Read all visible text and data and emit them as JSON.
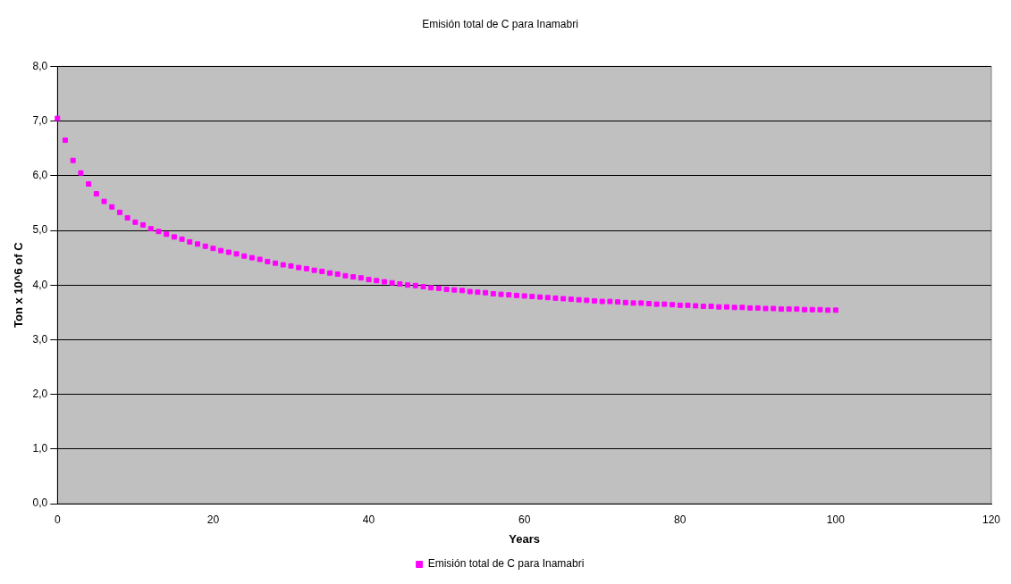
{
  "chart_data": {
    "type": "scatter",
    "title": "Emisión total de C para Inamabri",
    "xlabel": "Years",
    "ylabel": "Ton x 10^6 of C",
    "x": [
      0,
      1,
      2,
      3,
      4,
      5,
      6,
      7,
      8,
      9,
      10,
      11,
      12,
      13,
      14,
      15,
      16,
      17,
      18,
      19,
      20,
      21,
      22,
      23,
      24,
      25,
      26,
      27,
      28,
      29,
      30,
      31,
      32,
      33,
      34,
      35,
      36,
      37,
      38,
      39,
      40,
      41,
      42,
      43,
      44,
      45,
      46,
      47,
      48,
      49,
      50,
      51,
      52,
      53,
      54,
      55,
      56,
      57,
      58,
      59,
      60,
      61,
      62,
      63,
      64,
      65,
      66,
      67,
      68,
      69,
      70,
      71,
      72,
      73,
      74,
      75,
      76,
      77,
      78,
      79,
      80,
      81,
      82,
      83,
      84,
      85,
      86,
      87,
      88,
      89,
      90,
      91,
      92,
      93,
      94,
      95,
      96,
      97,
      98,
      99,
      100
    ],
    "series": [
      {
        "name": "Emisión total de C para Inamabri",
        "color": "#ff00ff",
        "values": [
          7.05,
          6.65,
          6.28,
          6.05,
          5.85,
          5.67,
          5.53,
          5.43,
          5.33,
          5.23,
          5.15,
          5.1,
          5.03,
          4.98,
          4.93,
          4.88,
          4.84,
          4.79,
          4.75,
          4.71,
          4.67,
          4.63,
          4.6,
          4.57,
          4.53,
          4.5,
          4.47,
          4.43,
          4.4,
          4.37,
          4.35,
          4.32,
          4.3,
          4.27,
          4.25,
          4.22,
          4.2,
          4.17,
          4.15,
          4.13,
          4.1,
          4.08,
          4.06,
          4.04,
          4.02,
          4.0,
          3.99,
          3.97,
          3.95,
          3.94,
          3.92,
          3.91,
          3.9,
          3.88,
          3.87,
          3.86,
          3.84,
          3.83,
          3.82,
          3.81,
          3.8,
          3.79,
          3.78,
          3.77,
          3.76,
          3.75,
          3.74,
          3.73,
          3.72,
          3.71,
          3.7,
          3.7,
          3.69,
          3.68,
          3.67,
          3.67,
          3.66,
          3.65,
          3.65,
          3.64,
          3.63,
          3.63,
          3.62,
          3.61,
          3.61,
          3.6,
          3.6,
          3.59,
          3.59,
          3.58,
          3.58,
          3.57,
          3.57,
          3.56,
          3.56,
          3.56,
          3.55,
          3.55,
          3.55,
          3.54,
          3.54
        ]
      }
    ],
    "xlim": [
      0,
      120
    ],
    "xticks": [
      0,
      20,
      40,
      60,
      80,
      100,
      120
    ],
    "ylim": [
      0,
      8
    ],
    "yticks": [
      {
        "value": 0,
        "label": "0,0"
      },
      {
        "value": 1,
        "label": "1,0"
      },
      {
        "value": 2,
        "label": "2,0"
      },
      {
        "value": 3,
        "label": "3,0"
      },
      {
        "value": 4,
        "label": "4,0"
      },
      {
        "value": 5,
        "label": "5,0"
      },
      {
        "value": 6,
        "label": "6,0"
      },
      {
        "value": 7,
        "label": "7,0"
      },
      {
        "value": 8,
        "label": "8,0"
      }
    ],
    "grid": "y",
    "legend": "bottom",
    "marker": "square"
  }
}
